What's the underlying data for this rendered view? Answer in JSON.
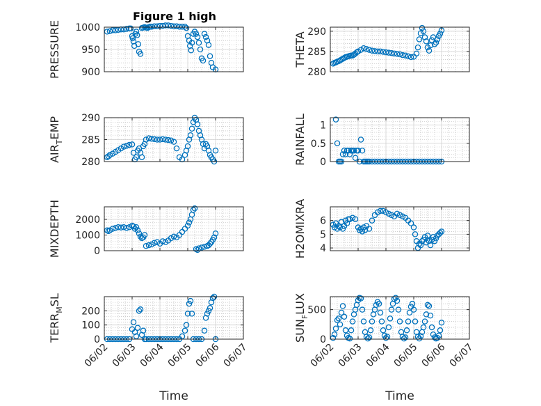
{
  "figure": {
    "title": "Figure 1 high"
  },
  "colors": {
    "marker": "#0072BD",
    "axis": "#262626",
    "grid": "#b0b0b0"
  },
  "chart_data": [
    {
      "type": "scatter",
      "ylabel": "PRESSURE",
      "ylim": [
        900,
        1000
      ],
      "yticks": [
        900,
        950,
        1000
      ],
      "xticks": [
        "06/02",
        "06/03",
        "06/04",
        "06/05",
        "06/06",
        "06/07"
      ],
      "xlim": [
        0,
        5
      ],
      "x": [
        0.1,
        0.2,
        0.3,
        0.4,
        0.5,
        0.6,
        0.7,
        0.8,
        0.9,
        0.95,
        1.0,
        1.02,
        1.05,
        1.08,
        1.12,
        1.15,
        1.18,
        1.22,
        1.25,
        1.3,
        1.35,
        1.4,
        1.45,
        1.5,
        1.55,
        1.6,
        1.65,
        1.7,
        1.8,
        1.9,
        2.0,
        2.1,
        2.2,
        2.3,
        2.4,
        2.5,
        2.6,
        2.7,
        2.8,
        2.9,
        2.95,
        3.0,
        3.05,
        3.08,
        3.12,
        3.15,
        3.2,
        3.25,
        3.3,
        3.35,
        3.4,
        3.45,
        3.5,
        3.55,
        3.6,
        3.65,
        3.7,
        3.75,
        3.8,
        3.85,
        3.9,
        4.0
      ],
      "y": [
        990,
        991,
        993,
        993,
        994,
        995,
        995,
        996,
        997,
        997,
        980,
        975,
        968,
        958,
        985,
        990,
        982,
        962,
        945,
        940,
        998,
        999,
        1000,
        999,
        998,
        1000,
        1001,
        1001,
        1002,
        1002,
        1003,
        1003,
        1004,
        1004,
        1003,
        1002,
        1002,
        1001,
        1001,
        1001,
        998,
        980,
        970,
        958,
        948,
        965,
        985,
        990,
        985,
        978,
        965,
        950,
        930,
        925,
        985,
        978,
        970,
        960,
        935,
        920,
        910,
        905
      ]
    },
    {
      "type": "scatter",
      "ylabel": "THETA",
      "ylim": [
        280,
        291
      ],
      "yticks": [
        280,
        285,
        290
      ],
      "xticks": [
        "06/02",
        "06/03",
        "06/04",
        "06/05",
        "06/06",
        "06/07"
      ],
      "xlim": [
        0,
        5
      ],
      "x": [
        0.1,
        0.15,
        0.2,
        0.25,
        0.3,
        0.35,
        0.4,
        0.45,
        0.5,
        0.55,
        0.6,
        0.65,
        0.7,
        0.75,
        0.8,
        0.85,
        0.9,
        0.95,
        1.0,
        1.1,
        1.2,
        1.3,
        1.4,
        1.5,
        1.6,
        1.7,
        1.8,
        1.9,
        2.0,
        2.1,
        2.2,
        2.3,
        2.4,
        2.5,
        2.6,
        2.7,
        2.8,
        2.9,
        3.0,
        3.1,
        3.15,
        3.2,
        3.25,
        3.3,
        3.35,
        3.4,
        3.45,
        3.5,
        3.55,
        3.6,
        3.65,
        3.7,
        3.75,
        3.8,
        3.85,
        3.9,
        3.95,
        4.0
      ],
      "y": [
        282.0,
        282.2,
        282.3,
        282.5,
        282.6,
        282.8,
        283.0,
        283.2,
        283.4,
        283.6,
        283.7,
        283.8,
        283.9,
        284.0,
        284.0,
        284.2,
        284.5,
        284.8,
        285.0,
        285.4,
        285.8,
        285.6,
        285.4,
        285.2,
        285.1,
        285.0,
        285.0,
        284.9,
        284.8,
        284.7,
        284.6,
        284.5,
        284.4,
        284.3,
        284.1,
        284.0,
        283.8,
        283.6,
        283.7,
        284.5,
        286.0,
        288.0,
        289.5,
        290.8,
        290.0,
        288.5,
        287.5,
        286.0,
        285.2,
        286.5,
        287.8,
        288.5,
        286.8,
        287.2,
        288.0,
        288.8,
        289.4,
        290.2
      ]
    },
    {
      "type": "scatter",
      "ylabel": "AIR_T_EMP",
      "ylim": [
        280,
        290
      ],
      "yticks": [
        280,
        285,
        290
      ],
      "xticks": [
        "06/02",
        "06/03",
        "06/04",
        "06/05",
        "06/06",
        "06/07"
      ],
      "xlim": [
        0,
        5
      ],
      "x": [
        0.1,
        0.15,
        0.2,
        0.3,
        0.4,
        0.5,
        0.6,
        0.7,
        0.8,
        0.9,
        1.0,
        1.05,
        1.1,
        1.15,
        1.2,
        1.25,
        1.3,
        1.35,
        1.4,
        1.45,
        1.5,
        1.6,
        1.7,
        1.8,
        1.9,
        2.0,
        2.1,
        2.2,
        2.3,
        2.4,
        2.5,
        2.6,
        2.7,
        2.8,
        2.9,
        2.95,
        3.0,
        3.05,
        3.1,
        3.15,
        3.2,
        3.25,
        3.3,
        3.35,
        3.4,
        3.45,
        3.5,
        3.55,
        3.6,
        3.65,
        3.7,
        3.75,
        3.8,
        3.85,
        3.9,
        3.95,
        4.0
      ],
      "y": [
        281.0,
        281.2,
        281.5,
        281.8,
        282.2,
        282.6,
        283.0,
        283.4,
        283.6,
        283.8,
        283.9,
        282.0,
        280.5,
        281.0,
        282.5,
        283.0,
        282.0,
        281.0,
        283.5,
        284.0,
        285.0,
        285.3,
        285.2,
        285.1,
        285.0,
        285.0,
        285.1,
        285.0,
        284.9,
        284.8,
        284.5,
        283.0,
        281.0,
        280.5,
        281.5,
        282.5,
        283.5,
        285.0,
        286.0,
        287.5,
        289.0,
        290.0,
        289.5,
        288.5,
        287.0,
        286.0,
        285.0,
        284.0,
        283.0,
        284.0,
        283.5,
        282.5,
        281.5,
        281.0,
        280.5,
        280.0,
        282.5
      ]
    },
    {
      "type": "scatter",
      "ylabel": "RAINFALL",
      "ylim": [
        0,
        1.2
      ],
      "yticks": [
        0,
        0.5,
        1
      ],
      "xticks": [
        "06/02",
        "06/03",
        "06/04",
        "06/05",
        "06/06",
        "06/07"
      ],
      "xlim": [
        0,
        5
      ],
      "x": [
        0.2,
        0.25,
        0.3,
        0.35,
        0.4,
        0.45,
        0.5,
        0.55,
        0.6,
        0.65,
        0.7,
        0.75,
        0.8,
        0.85,
        0.9,
        0.95,
        1.0,
        1.05,
        1.1,
        1.15,
        1.2,
        1.25,
        1.3,
        1.35,
        1.4,
        1.5,
        1.6,
        1.7,
        1.8,
        1.9,
        2.0,
        2.1,
        2.2,
        2.3,
        2.4,
        2.5,
        2.6,
        2.7,
        2.8,
        2.9,
        3.0,
        3.1,
        3.2,
        3.3,
        3.4,
        3.5,
        3.6,
        3.7,
        3.8,
        3.9,
        4.0
      ],
      "y": [
        1.15,
        0.5,
        0.0,
        0.0,
        0.0,
        0.2,
        0.3,
        0.2,
        0.3,
        0.3,
        0.2,
        0.3,
        0.3,
        0.3,
        0.1,
        0.3,
        0.3,
        0.0,
        0.6,
        0.3,
        0.0,
        0.0,
        0.0,
        0.0,
        0.0,
        0.0,
        0.0,
        0.0,
        0.0,
        0.0,
        0.0,
        0.0,
        0.0,
        0.0,
        0.0,
        0.0,
        0.0,
        0.0,
        0.0,
        0.0,
        0.0,
        0.0,
        0.0,
        0.0,
        0.0,
        0.0,
        0.0,
        0.0,
        0.0,
        0.0,
        0.0
      ]
    },
    {
      "type": "scatter",
      "ylabel": "MIXDEPTH",
      "ylim": [
        0,
        2800
      ],
      "yticks": [
        0,
        1000,
        2000
      ],
      "xticks": [
        "06/02",
        "06/03",
        "06/04",
        "06/05",
        "06/06",
        "06/07"
      ],
      "xlim": [
        0,
        5
      ],
      "x": [
        0.1,
        0.15,
        0.2,
        0.3,
        0.4,
        0.5,
        0.6,
        0.7,
        0.8,
        0.9,
        1.0,
        1.05,
        1.1,
        1.15,
        1.2,
        1.25,
        1.3,
        1.35,
        1.4,
        1.45,
        1.5,
        1.6,
        1.7,
        1.8,
        1.9,
        2.0,
        2.1,
        2.2,
        2.3,
        2.4,
        2.5,
        2.6,
        2.7,
        2.8,
        2.9,
        3.0,
        3.05,
        3.1,
        3.15,
        3.2,
        3.25,
        3.3,
        3.35,
        3.4,
        3.5,
        3.6,
        3.7,
        3.75,
        3.8,
        3.85,
        3.9,
        3.95,
        4.0
      ],
      "y": [
        1300,
        1250,
        1300,
        1400,
        1450,
        1500,
        1480,
        1500,
        1450,
        1500,
        1600,
        1550,
        1400,
        1500,
        1300,
        1100,
        900,
        800,
        850,
        1000,
        300,
        350,
        400,
        500,
        550,
        450,
        600,
        550,
        650,
        800,
        900,
        850,
        1000,
        1200,
        1400,
        1600,
        1800,
        2000,
        2300,
        2600,
        2700,
        100,
        50,
        150,
        200,
        250,
        300,
        350,
        450,
        550,
        700,
        850,
        1100
      ]
    },
    {
      "type": "scatter",
      "ylabel": "H2OMIXRA",
      "ylim": [
        3.8,
        7
      ],
      "yticks": [
        4,
        5,
        6
      ],
      "xticks": [
        "06/02",
        "06/03",
        "06/04",
        "06/05",
        "06/06",
        "06/07"
      ],
      "xlim": [
        0,
        5
      ],
      "x": [
        0.1,
        0.15,
        0.2,
        0.25,
        0.3,
        0.35,
        0.4,
        0.45,
        0.5,
        0.55,
        0.6,
        0.65,
        0.7,
        0.8,
        0.9,
        1.0,
        1.05,
        1.1,
        1.15,
        1.2,
        1.25,
        1.3,
        1.4,
        1.5,
        1.6,
        1.7,
        1.8,
        1.9,
        2.0,
        2.1,
        2.2,
        2.3,
        2.4,
        2.5,
        2.6,
        2.7,
        2.8,
        2.9,
        3.0,
        3.05,
        3.1,
        3.15,
        3.2,
        3.25,
        3.3,
        3.35,
        3.4,
        3.45,
        3.5,
        3.55,
        3.6,
        3.65,
        3.7,
        3.75,
        3.8,
        3.85,
        3.9,
        3.95,
        4.0
      ],
      "y": [
        5.7,
        5.5,
        5.8,
        5.4,
        5.6,
        5.5,
        5.9,
        5.4,
        5.6,
        6.0,
        5.8,
        6.1,
        6.1,
        6.2,
        6.1,
        5.5,
        5.3,
        5.4,
        5.2,
        5.5,
        5.3,
        5.6,
        5.4,
        6.0,
        6.4,
        6.6,
        6.7,
        6.7,
        6.6,
        6.5,
        6.4,
        6.3,
        6.5,
        6.4,
        6.3,
        6.2,
        6.0,
        5.8,
        5.5,
        5.0,
        4.5,
        4.0,
        4.3,
        4.2,
        4.5,
        4.6,
        4.8,
        4.4,
        4.9,
        4.5,
        4.2,
        4.6,
        4.8,
        4.5,
        4.7,
        4.9,
        5.0,
        5.1,
        5.2
      ]
    },
    {
      "type": "scatter",
      "ylabel": "TERR_M_SL",
      "ylim": [
        0,
        300
      ],
      "yticks": [
        0,
        100,
        200
      ],
      "xticks": [
        "06/02",
        "06/03",
        "06/04",
        "06/05",
        "06/06",
        "06/07"
      ],
      "xlim": [
        0,
        5
      ],
      "x": [
        0.1,
        0.2,
        0.3,
        0.4,
        0.5,
        0.6,
        0.7,
        0.8,
        0.9,
        1.0,
        1.05,
        1.1,
        1.15,
        1.2,
        1.25,
        1.3,
        1.35,
        1.4,
        1.45,
        1.5,
        1.6,
        1.7,
        1.8,
        1.9,
        2.0,
        2.1,
        2.2,
        2.3,
        2.4,
        2.5,
        2.6,
        2.7,
        2.8,
        2.9,
        2.95,
        3.0,
        3.05,
        3.1,
        3.15,
        3.2,
        3.3,
        3.4,
        3.5,
        3.6,
        3.65,
        3.7,
        3.75,
        3.8,
        3.85,
        3.9,
        3.95,
        4.0
      ],
      "y": [
        0,
        0,
        0,
        0,
        0,
        0,
        0,
        0,
        0,
        70,
        120,
        50,
        20,
        80,
        200,
        210,
        30,
        60,
        0,
        0,
        0,
        0,
        0,
        0,
        0,
        0,
        0,
        0,
        0,
        0,
        0,
        0,
        20,
        60,
        100,
        180,
        250,
        270,
        180,
        0,
        0,
        0,
        0,
        60,
        150,
        180,
        200,
        220,
        260,
        290,
        300,
        0
      ]
    },
    {
      "type": "scatter",
      "ylabel": "SUN_F_LUX",
      "ylim": [
        0,
        720
      ],
      "yticks": [
        0,
        500
      ],
      "xticks": [
        "06/02",
        "06/03",
        "06/04",
        "06/05",
        "06/06",
        "06/07"
      ],
      "xlim": [
        0,
        5
      ],
      "x": [
        0.1,
        0.15,
        0.2,
        0.25,
        0.3,
        0.35,
        0.4,
        0.45,
        0.5,
        0.55,
        0.6,
        0.65,
        0.7,
        0.75,
        0.8,
        0.85,
        0.9,
        0.95,
        1.0,
        1.05,
        1.1,
        1.15,
        1.2,
        1.25,
        1.3,
        1.35,
        1.4,
        1.45,
        1.5,
        1.55,
        1.6,
        1.65,
        1.7,
        1.75,
        1.8,
        1.85,
        1.9,
        1.95,
        2.0,
        2.05,
        2.1,
        2.15,
        2.2,
        2.25,
        2.3,
        2.35,
        2.4,
        2.45,
        2.5,
        2.55,
        2.6,
        2.65,
        2.7,
        2.75,
        2.8,
        2.85,
        2.9,
        2.95,
        3.0,
        3.05,
        3.1,
        3.15,
        3.2,
        3.25,
        3.3,
        3.35,
        3.4,
        3.45,
        3.5,
        3.55,
        3.6,
        3.65,
        3.7,
        3.75,
        3.8,
        3.85,
        3.9,
        3.95,
        4.0
      ],
      "y": [
        20,
        80,
        180,
        320,
        350,
        250,
        450,
        560,
        380,
        150,
        60,
        20,
        10,
        150,
        300,
        420,
        500,
        580,
        660,
        700,
        690,
        500,
        300,
        120,
        40,
        10,
        30,
        150,
        300,
        420,
        500,
        580,
        630,
        600,
        450,
        300,
        150,
        60,
        20,
        40,
        200,
        350,
        500,
        600,
        680,
        700,
        650,
        500,
        300,
        120,
        40,
        10,
        30,
        150,
        300,
        450,
        550,
        600,
        500,
        300,
        120,
        40,
        10,
        50,
        120,
        200,
        300,
        420,
        580,
        560,
        400,
        200,
        80,
        30,
        10,
        20,
        60,
        150,
        280
      ]
    }
  ],
  "panels": [
    {
      "ylabel_parts": [
        "PRESSURE"
      ],
      "yticks_text": [
        "900",
        "950",
        "1000"
      ]
    },
    {
      "ylabel_parts": [
        "THETA"
      ],
      "yticks_text": [
        "280",
        "285",
        "290"
      ]
    },
    {
      "ylabel_parts": [
        "AIR",
        "T",
        "EMP"
      ],
      "yticks_text": [
        "280",
        "285",
        "290"
      ]
    },
    {
      "ylabel_parts": [
        "RAINFALL"
      ],
      "yticks_text": [
        "0",
        "0.5",
        "1"
      ]
    },
    {
      "ylabel_parts": [
        "MIXDEPTH"
      ],
      "yticks_text": [
        "0",
        "1000",
        "2000"
      ]
    },
    {
      "ylabel_parts": [
        "H2OMIXRA"
      ],
      "yticks_text": [
        "4",
        "5",
        "6"
      ]
    },
    {
      "ylabel_parts": [
        "TERR",
        "M",
        "SL"
      ],
      "yticks_text": [
        "0",
        "100",
        "200"
      ]
    },
    {
      "ylabel_parts": [
        "SUN",
        "F",
        "LUX"
      ],
      "yticks_text": [
        "0",
        "500"
      ]
    }
  ],
  "xaxis": {
    "label": "Time",
    "ticks": [
      "06/02",
      "06/03",
      "06/04",
      "06/05",
      "06/06",
      "06/07"
    ]
  }
}
